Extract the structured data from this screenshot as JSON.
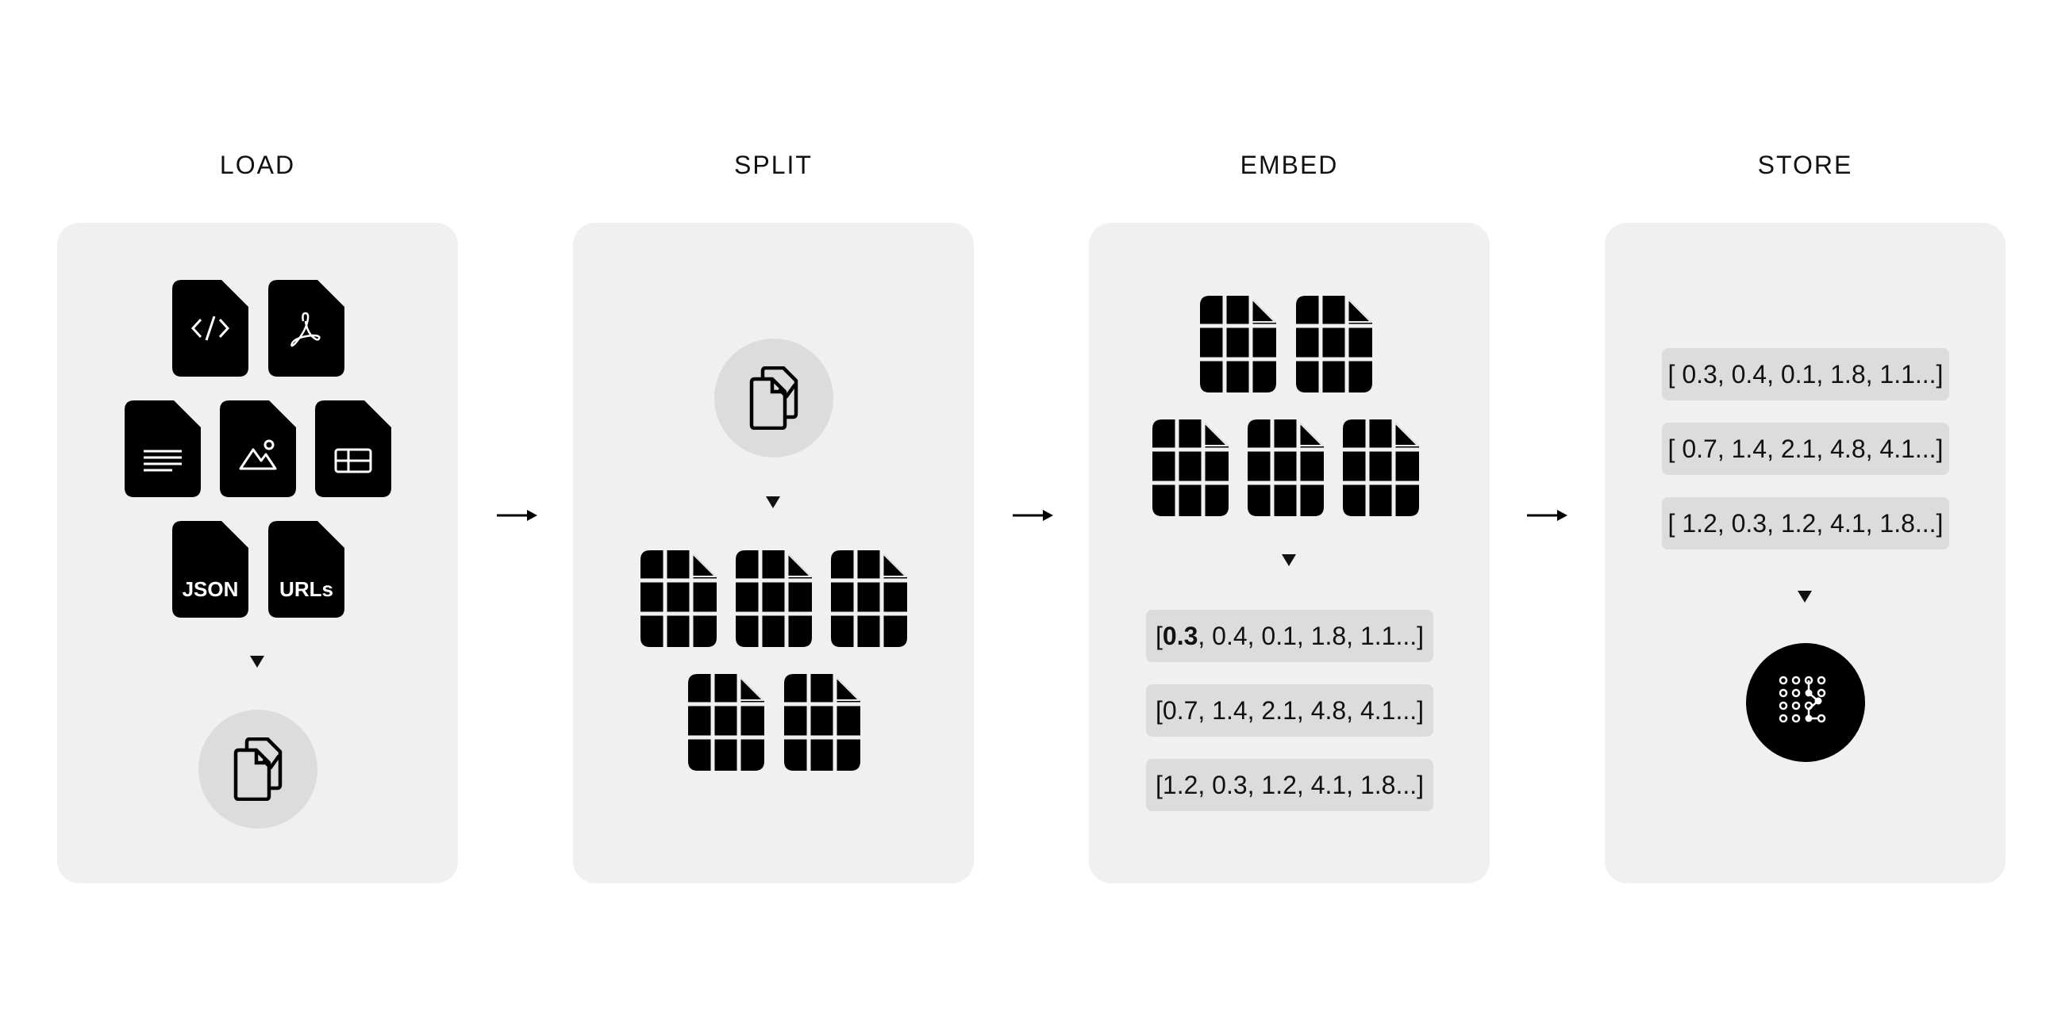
{
  "stages": [
    {
      "title": "LOAD"
    },
    {
      "title": "SPLIT"
    },
    {
      "title": "EMBED"
    },
    {
      "title": "STORE"
    }
  ],
  "load": {
    "file_types": [
      "code-file-icon",
      "pdf-file-icon",
      "text-file-icon",
      "image-file-icon",
      "table-file-icon",
      "json-file-icon",
      "urls-file-icon"
    ],
    "json_label": "JSON",
    "urls_label": "URLs"
  },
  "embed": {
    "vectors": [
      {
        "pre": "[ ",
        "bold": "0.3",
        "rest": ", 0.4, 0.1, 1.8, 1.1...]"
      },
      {
        "pre": "[ ",
        "bold": "",
        "rest": "0.7, 1.4, 2.1, 4.8, 4.1...]"
      },
      {
        "pre": "[ ",
        "bold": "",
        "rest": "1.2, 0.3, 1.2, 4.1, 1.8...]"
      }
    ]
  },
  "store": {
    "vectors": [
      {
        "text": "[ 0.3, 0.4, 0.1, 1.8, 1.1...]"
      },
      {
        "text": "[ 0.7, 1.4, 2.1, 4.8, 4.1...]"
      },
      {
        "text": "[ 1.2, 0.3, 1.2, 4.1, 1.8...]"
      }
    ]
  },
  "colors": {
    "panel": "#f0f0f0",
    "chip": "#dcdcdc",
    "ink": "#000000"
  }
}
